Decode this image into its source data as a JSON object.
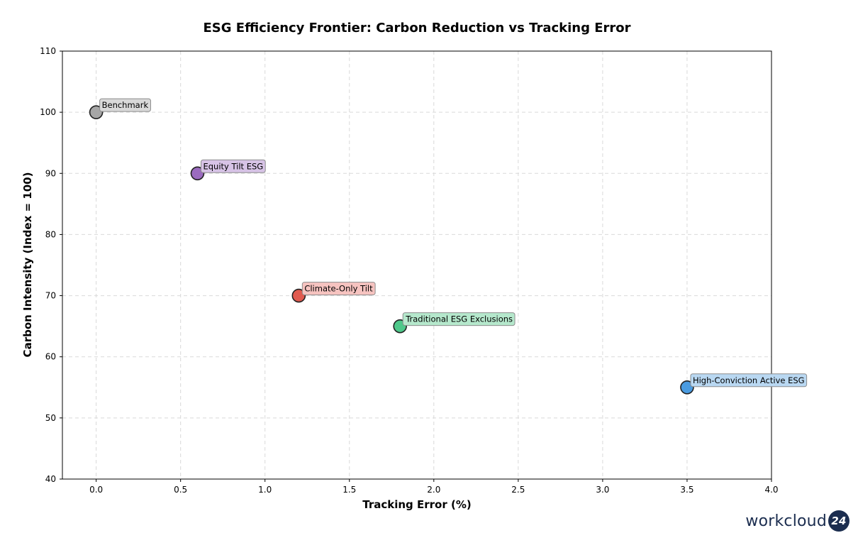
{
  "chart_data": {
    "type": "scatter",
    "title": "ESG Efficiency Frontier: Carbon Reduction vs Tracking Error",
    "xlabel": "Tracking Error (%)",
    "ylabel": "Carbon Intensity (Index = 100)",
    "xlim": [
      -0.2,
      4.0
    ],
    "ylim": [
      40,
      110
    ],
    "xticks": [
      "0.0",
      "0.5",
      "1.0",
      "1.5",
      "2.0",
      "2.5",
      "3.0",
      "3.5",
      "4.0"
    ],
    "xtick_values": [
      0,
      0.5,
      1.0,
      1.5,
      2.0,
      2.5,
      3.0,
      3.5,
      4.0
    ],
    "yticks": [
      "40",
      "50",
      "60",
      "70",
      "80",
      "90",
      "100",
      "110"
    ],
    "ytick_values": [
      40,
      50,
      60,
      70,
      80,
      90,
      100,
      110
    ],
    "grid": true,
    "points": [
      {
        "name": "Benchmark",
        "x": 0.0,
        "y": 100,
        "color": "#a6a6a6",
        "label_bg": "#d9d9d9"
      },
      {
        "name": "Equity Tilt ESG",
        "x": 0.6,
        "y": 90,
        "color": "#9b6bbf",
        "label_bg": "#d7c3e6"
      },
      {
        "name": "Climate-Only Tilt",
        "x": 1.2,
        "y": 70,
        "color": "#e05a4f",
        "label_bg": "#f6c3c0"
      },
      {
        "name": "Traditional ESG Exclusions",
        "x": 1.8,
        "y": 65,
        "color": "#4ec88a",
        "label_bg": "#b5e8cc"
      },
      {
        "name": "High-Conviction Active ESG",
        "x": 3.5,
        "y": 55,
        "color": "#4a9be0",
        "label_bg": "#b9d8f2"
      }
    ]
  },
  "watermark": {
    "text": "workcloud",
    "badge": "24"
  }
}
